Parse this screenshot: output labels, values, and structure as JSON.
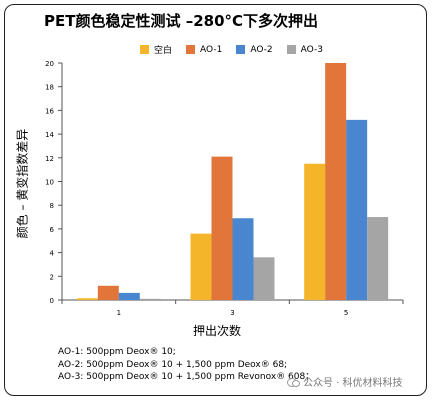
{
  "chart_data": {
    "type": "bar",
    "title": "PET颜色稳定性测试 –280°C下多次押出",
    "xlabel": "押出次数",
    "ylabel": "颜色 – 黄变指数差异",
    "categories": [
      "1",
      "3",
      "5"
    ],
    "ylim": [
      0,
      20
    ],
    "yticks": [
      0,
      2,
      4,
      6,
      8,
      10,
      12,
      14,
      16,
      18,
      20
    ],
    "grid": false,
    "legend_position": "top",
    "series": [
      {
        "name": "空白",
        "color": "#F5B52A",
        "values": [
          0.15,
          5.6,
          11.5
        ]
      },
      {
        "name": "AO-1",
        "color": "#E2763A",
        "values": [
          1.2,
          12.1,
          20.0
        ]
      },
      {
        "name": "AO-2",
        "color": "#4A86CF",
        "values": [
          0.6,
          6.9,
          15.2
        ]
      },
      {
        "name": "AO-3",
        "color": "#A5A5A5",
        "values": [
          0.1,
          3.6,
          7.0
        ]
      }
    ]
  },
  "notes": [
    "AO-1: 500ppm Deox® 10;",
    "AO-2: 500ppm Deox® 10 + 1,500 ppm Deox® 68;",
    "AO-3: 500ppm Deox® 10 + 1,500 ppm Revonox® 608；"
  ],
  "watermark": "公众号 · 科优材料科技"
}
